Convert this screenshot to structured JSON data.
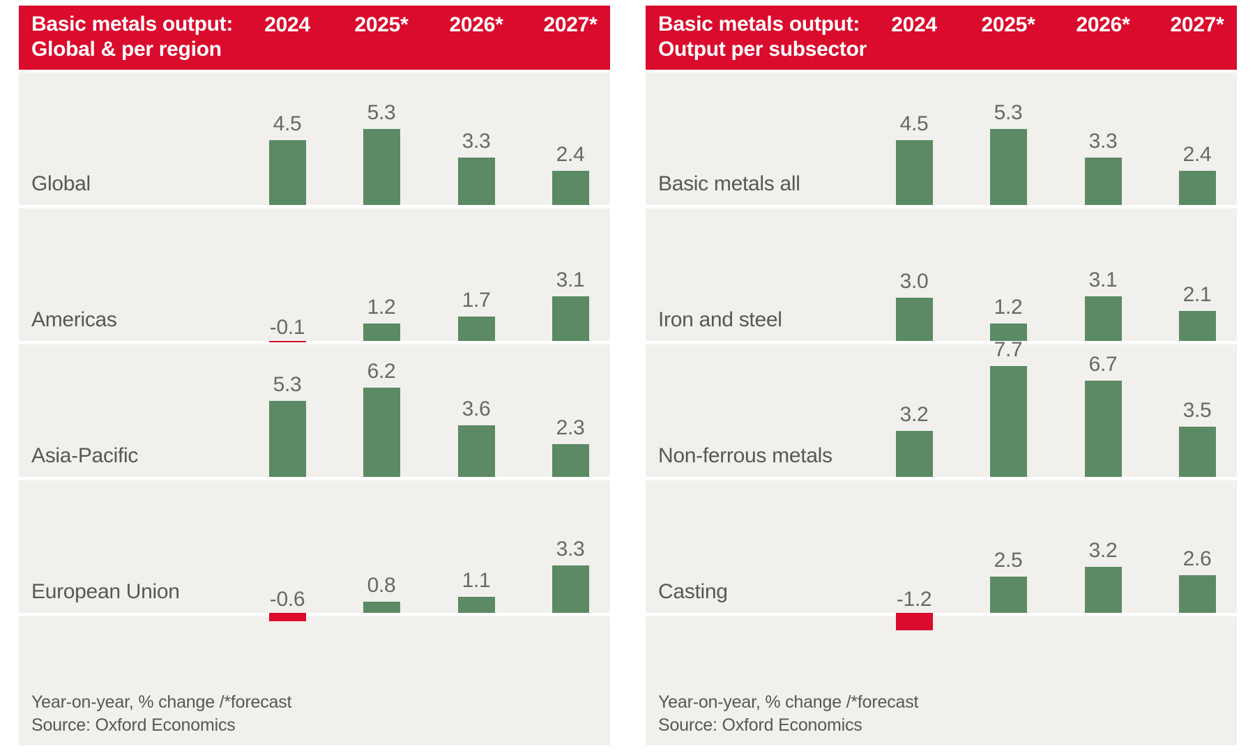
{
  "colors": {
    "brand_red": "#da0b2c",
    "bar_green": "#5b8a64",
    "row_background": "#f1f0ed",
    "text_gray": "#575756",
    "header_text": "#ffffff"
  },
  "chart_data": [
    {
      "type": "bar",
      "title_line1": "Basic metals output:",
      "title_line2": "Global & per region",
      "columns": [
        "2024",
        "2025*",
        "2026*",
        "2027*"
      ],
      "rows": [
        {
          "label": "Global",
          "values": [
            4.5,
            5.3,
            3.3,
            2.4
          ]
        },
        {
          "label": "Americas",
          "values": [
            -0.1,
            1.2,
            1.7,
            3.1
          ]
        },
        {
          "label": "Asia-Pacific",
          "values": [
            5.3,
            6.2,
            3.6,
            2.3
          ]
        },
        {
          "label": "European Union",
          "values": [
            -0.6,
            0.8,
            1.1,
            3.3
          ]
        }
      ],
      "value_unit": "% year-on-year change",
      "positive_bar_color": "#5b8a64",
      "negative_bar_color": "#da0b2c",
      "footnote": "Year-on-year, % change /*forecast",
      "source": "Source: Oxford Economics"
    },
    {
      "type": "bar",
      "title_line1": "Basic metals output:",
      "title_line2": "Output per subsector",
      "columns": [
        "2024",
        "2025*",
        "2026*",
        "2027*"
      ],
      "rows": [
        {
          "label": "Basic metals all",
          "values": [
            4.5,
            5.3,
            3.3,
            2.4
          ]
        },
        {
          "label": "Iron and steel",
          "values": [
            3.0,
            1.2,
            3.1,
            2.1
          ]
        },
        {
          "label": "Non-ferrous metals",
          "values": [
            3.2,
            7.7,
            6.7,
            3.5
          ]
        },
        {
          "label": "Casting",
          "values": [
            -1.2,
            2.5,
            3.2,
            2.6
          ]
        }
      ],
      "value_unit": "% year-on-year change",
      "positive_bar_color": "#5b8a64",
      "negative_bar_color": "#da0b2c",
      "footnote": "Year-on-year, % change /*forecast",
      "source": "Source: Oxford Economics"
    }
  ]
}
